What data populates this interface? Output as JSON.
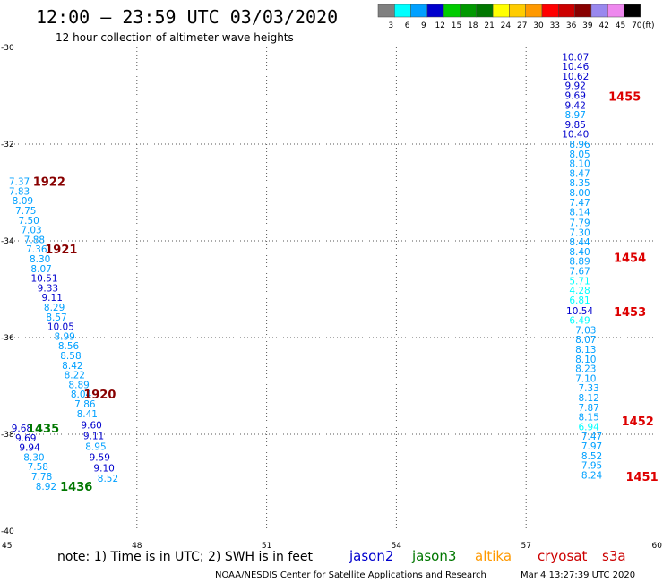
{
  "header": {
    "title": "12:00 – 23:59 UTC 03/03/2020",
    "subtitle": "12 hour collection of altimeter wave heights"
  },
  "colorbar": {
    "labels": [
      "3",
      "6",
      "9",
      "12",
      "15",
      "18",
      "21",
      "24",
      "27",
      "30",
      "33",
      "36",
      "39",
      "42",
      "45",
      "70"
    ],
    "unit": "(ft)",
    "colors": [
      "#808080",
      "#00ffff",
      "#00a0ff",
      "#0000cd",
      "#00cc00",
      "#009900",
      "#007700",
      "#ffff00",
      "#ffcc00",
      "#ff9900",
      "#ff0000",
      "#cc0000",
      "#880000",
      "#9988ee",
      "#ee88ee",
      "#000000"
    ]
  },
  "note": "note:  1) Time is in UTC; 2) SWH is in feet",
  "satellites": [
    {
      "name": "jason2",
      "color": "#0000cd"
    },
    {
      "name": "jason3",
      "color": "#007700"
    },
    {
      "name": "altika",
      "color": "#ff9900"
    },
    {
      "name": "cryosat",
      "color": "#cc0000"
    },
    {
      "name": "s3a",
      "color": "#cc0000"
    }
  ],
  "footer": {
    "left": "NOAA/NESDIS Center for Satellite Applications and Research",
    "right": "Mar  4 13:27:39 UTC 2020"
  },
  "chart_data": {
    "type": "scatter",
    "xlim": [
      45,
      60
    ],
    "ylim": [
      -40,
      -30
    ],
    "xticks": [
      "45",
      "48",
      "51",
      "54",
      "57",
      "60"
    ],
    "yticks": [
      "-30",
      "-32",
      "-34",
      "-36",
      "-38",
      "-40"
    ],
    "grid": true,
    "points": [
      {
        "lon": 58.14,
        "lat": -30.19,
        "v": "10.07",
        "c": "#0000cd"
      },
      {
        "lon": 58.14,
        "lat": -30.39,
        "v": "10.46",
        "c": "#0000cd"
      },
      {
        "lon": 58.14,
        "lat": -30.59,
        "v": "10.62",
        "c": "#0000cd"
      },
      {
        "lon": 58.14,
        "lat": -30.79,
        "v": "9.92",
        "c": "#0000cd"
      },
      {
        "lon": 58.14,
        "lat": -30.99,
        "v": "9.69",
        "c": "#0000cd"
      },
      {
        "lon": 58.14,
        "lat": -31.19,
        "v": "9.42",
        "c": "#0000cd"
      },
      {
        "lon": 58.14,
        "lat": -31.39,
        "v": "8.97",
        "c": "#00a0ff"
      },
      {
        "lon": 58.14,
        "lat": -31.59,
        "v": "9.85",
        "c": "#0000cd"
      },
      {
        "lon": 58.14,
        "lat": -31.79,
        "v": "10.40",
        "c": "#0000cd"
      },
      {
        "lon": 58.24,
        "lat": -32.0,
        "v": "8.96",
        "c": "#00a0ff"
      },
      {
        "lon": 58.24,
        "lat": -32.2,
        "v": "8.05",
        "c": "#00a0ff"
      },
      {
        "lon": 58.24,
        "lat": -32.4,
        "v": "8.10",
        "c": "#00a0ff"
      },
      {
        "lon": 58.24,
        "lat": -32.6,
        "v": "8.47",
        "c": "#00a0ff"
      },
      {
        "lon": 58.24,
        "lat": -32.8,
        "v": "8.35",
        "c": "#00a0ff"
      },
      {
        "lon": 58.24,
        "lat": -33.0,
        "v": "8.00",
        "c": "#00a0ff"
      },
      {
        "lon": 58.24,
        "lat": -33.2,
        "v": "7.47",
        "c": "#00a0ff"
      },
      {
        "lon": 58.24,
        "lat": -33.4,
        "v": "8.14",
        "c": "#00a0ff"
      },
      {
        "lon": 58.24,
        "lat": -33.62,
        "v": "7.79",
        "c": "#00a0ff"
      },
      {
        "lon": 58.24,
        "lat": -33.82,
        "v": "7.30",
        "c": "#00a0ff"
      },
      {
        "lon": 58.24,
        "lat": -34.02,
        "v": "8.44",
        "c": "#00a0ff"
      },
      {
        "lon": 58.24,
        "lat": -34.22,
        "v": "8.40",
        "c": "#00a0ff"
      },
      {
        "lon": 58.24,
        "lat": -34.42,
        "v": "8.89",
        "c": "#00a0ff"
      },
      {
        "lon": 58.24,
        "lat": -34.62,
        "v": "7.67",
        "c": "#00a0ff"
      },
      {
        "lon": 58.24,
        "lat": -34.82,
        "v": "5.71",
        "c": "#00ffff"
      },
      {
        "lon": 58.24,
        "lat": -35.02,
        "v": "4.28",
        "c": "#00ffff"
      },
      {
        "lon": 58.24,
        "lat": -35.22,
        "v": "6.81",
        "c": "#00ffff"
      },
      {
        "lon": 58.24,
        "lat": -35.44,
        "v": "10.54",
        "c": "#0000cd"
      },
      {
        "lon": 58.24,
        "lat": -35.64,
        "v": "6.49",
        "c": "#00ffff"
      },
      {
        "lon": 58.38,
        "lat": -35.84,
        "v": "7.03",
        "c": "#00a0ff"
      },
      {
        "lon": 58.38,
        "lat": -36.04,
        "v": "8.07",
        "c": "#00a0ff"
      },
      {
        "lon": 58.38,
        "lat": -36.24,
        "v": "8.13",
        "c": "#00a0ff"
      },
      {
        "lon": 58.38,
        "lat": -36.44,
        "v": "8.10",
        "c": "#00a0ff"
      },
      {
        "lon": 58.38,
        "lat": -36.64,
        "v": "8.23",
        "c": "#00a0ff"
      },
      {
        "lon": 58.38,
        "lat": -36.84,
        "v": "7.10",
        "c": "#00a0ff"
      },
      {
        "lon": 58.45,
        "lat": -37.04,
        "v": "7.33",
        "c": "#00a0ff"
      },
      {
        "lon": 58.45,
        "lat": -37.24,
        "v": "8.12",
        "c": "#00a0ff"
      },
      {
        "lon": 58.45,
        "lat": -37.44,
        "v": "7.87",
        "c": "#00a0ff"
      },
      {
        "lon": 58.45,
        "lat": -37.64,
        "v": "8.15",
        "c": "#00a0ff"
      },
      {
        "lon": 58.45,
        "lat": -37.84,
        "v": "6.94",
        "c": "#00ffff"
      },
      {
        "lon": 58.52,
        "lat": -38.04,
        "v": "7.47",
        "c": "#00a0ff"
      },
      {
        "lon": 58.52,
        "lat": -38.24,
        "v": "7.97",
        "c": "#00a0ff"
      },
      {
        "lon": 58.52,
        "lat": -38.44,
        "v": "8.52",
        "c": "#00a0ff"
      },
      {
        "lon": 58.52,
        "lat": -38.64,
        "v": "7.95",
        "c": "#00a0ff"
      },
      {
        "lon": 58.52,
        "lat": -38.84,
        "v": "8.24",
        "c": "#00a0ff"
      },
      {
        "lon": 45.28,
        "lat": -32.77,
        "v": "7.37",
        "c": "#00a0ff"
      },
      {
        "lon": 45.28,
        "lat": -32.97,
        "v": "7.83",
        "c": "#00a0ff"
      },
      {
        "lon": 45.36,
        "lat": -33.17,
        "v": "8.09",
        "c": "#00a0ff"
      },
      {
        "lon": 45.43,
        "lat": -33.37,
        "v": "7.75",
        "c": "#00a0ff"
      },
      {
        "lon": 45.5,
        "lat": -33.57,
        "v": "7.50",
        "c": "#00a0ff"
      },
      {
        "lon": 45.56,
        "lat": -33.77,
        "v": "7.03",
        "c": "#00a0ff"
      },
      {
        "lon": 45.63,
        "lat": -33.97,
        "v": "7.88",
        "c": "#00a0ff"
      },
      {
        "lon": 45.68,
        "lat": -34.17,
        "v": "7.36",
        "c": "#00a0ff"
      },
      {
        "lon": 45.76,
        "lat": -34.37,
        "v": "8.30",
        "c": "#00a0ff"
      },
      {
        "lon": 45.79,
        "lat": -34.57,
        "v": "8.07",
        "c": "#00a0ff"
      },
      {
        "lon": 45.86,
        "lat": -34.77,
        "v": "10.51",
        "c": "#0000cd"
      },
      {
        "lon": 45.94,
        "lat": -34.97,
        "v": "9.33",
        "c": "#0000cd"
      },
      {
        "lon": 46.04,
        "lat": -35.17,
        "v": "9.11",
        "c": "#0000cd"
      },
      {
        "lon": 46.09,
        "lat": -35.37,
        "v": "8.29",
        "c": "#00a0ff"
      },
      {
        "lon": 46.14,
        "lat": -35.57,
        "v": "8.57",
        "c": "#00a0ff"
      },
      {
        "lon": 46.24,
        "lat": -35.77,
        "v": "10.05",
        "c": "#0000cd"
      },
      {
        "lon": 46.33,
        "lat": -35.97,
        "v": "8.99",
        "c": "#00a0ff"
      },
      {
        "lon": 46.42,
        "lat": -36.17,
        "v": "8.56",
        "c": "#00a0ff"
      },
      {
        "lon": 46.47,
        "lat": -36.37,
        "v": "8.58",
        "c": "#00a0ff"
      },
      {
        "lon": 46.51,
        "lat": -36.57,
        "v": "8.42",
        "c": "#00a0ff"
      },
      {
        "lon": 46.56,
        "lat": -36.77,
        "v": "8.22",
        "c": "#00a0ff"
      },
      {
        "lon": 46.66,
        "lat": -36.97,
        "v": "8.89",
        "c": "#00a0ff"
      },
      {
        "lon": 46.71,
        "lat": -37.17,
        "v": "8.04",
        "c": "#00a0ff"
      },
      {
        "lon": 46.8,
        "lat": -37.37,
        "v": "7.86",
        "c": "#00a0ff"
      },
      {
        "lon": 46.85,
        "lat": -37.57,
        "v": "8.41",
        "c": "#00a0ff"
      },
      {
        "lon": 46.95,
        "lat": -37.81,
        "v": "9.60",
        "c": "#0000cd"
      },
      {
        "lon": 47.0,
        "lat": -38.03,
        "v": "9.11",
        "c": "#0000cd"
      },
      {
        "lon": 47.05,
        "lat": -38.25,
        "v": "8.95",
        "c": "#00a0ff"
      },
      {
        "lon": 47.14,
        "lat": -38.47,
        "v": "9.59",
        "c": "#0000cd"
      },
      {
        "lon": 47.24,
        "lat": -38.69,
        "v": "9.10",
        "c": "#0000cd"
      },
      {
        "lon": 47.33,
        "lat": -38.91,
        "v": "8.52",
        "c": "#00a0ff"
      },
      {
        "lon": 45.34,
        "lat": -37.87,
        "v": "9.68",
        "c": "#0000cd"
      },
      {
        "lon": 45.43,
        "lat": -38.07,
        "v": "9.69",
        "c": "#0000cd"
      },
      {
        "lon": 45.52,
        "lat": -38.27,
        "v": "9.94",
        "c": "#0000cd"
      },
      {
        "lon": 45.62,
        "lat": -38.47,
        "v": "8.30",
        "c": "#00a0ff"
      },
      {
        "lon": 45.71,
        "lat": -38.67,
        "v": "7.58",
        "c": "#00a0ff"
      },
      {
        "lon": 45.8,
        "lat": -38.87,
        "v": "7.78",
        "c": "#00a0ff"
      },
      {
        "lon": 45.9,
        "lat": -39.07,
        "v": "8.92",
        "c": "#00a0ff"
      }
    ],
    "time_labels": [
      {
        "lon": 59.28,
        "lat": -31.01,
        "t": "1455",
        "c": "#dd0000"
      },
      {
        "lon": 59.4,
        "lat": -34.34,
        "t": "1454",
        "c": "#dd0000"
      },
      {
        "lon": 59.4,
        "lat": -35.46,
        "t": "1453",
        "c": "#dd0000"
      },
      {
        "lon": 59.58,
        "lat": -37.72,
        "t": "1452",
        "c": "#dd0000"
      },
      {
        "lon": 59.68,
        "lat": -38.87,
        "t": "1451",
        "c": "#dd0000"
      },
      {
        "lon": 45.97,
        "lat": -32.77,
        "t": "1922",
        "c": "#880000"
      },
      {
        "lon": 46.25,
        "lat": -34.17,
        "t": "1921",
        "c": "#880000"
      },
      {
        "lon": 47.14,
        "lat": -37.17,
        "t": "1920",
        "c": "#880000"
      },
      {
        "lon": 45.83,
        "lat": -37.87,
        "t": "1435",
        "c": "#007700"
      },
      {
        "lon": 46.6,
        "lat": -39.07,
        "t": "1436",
        "c": "#007700"
      }
    ]
  }
}
